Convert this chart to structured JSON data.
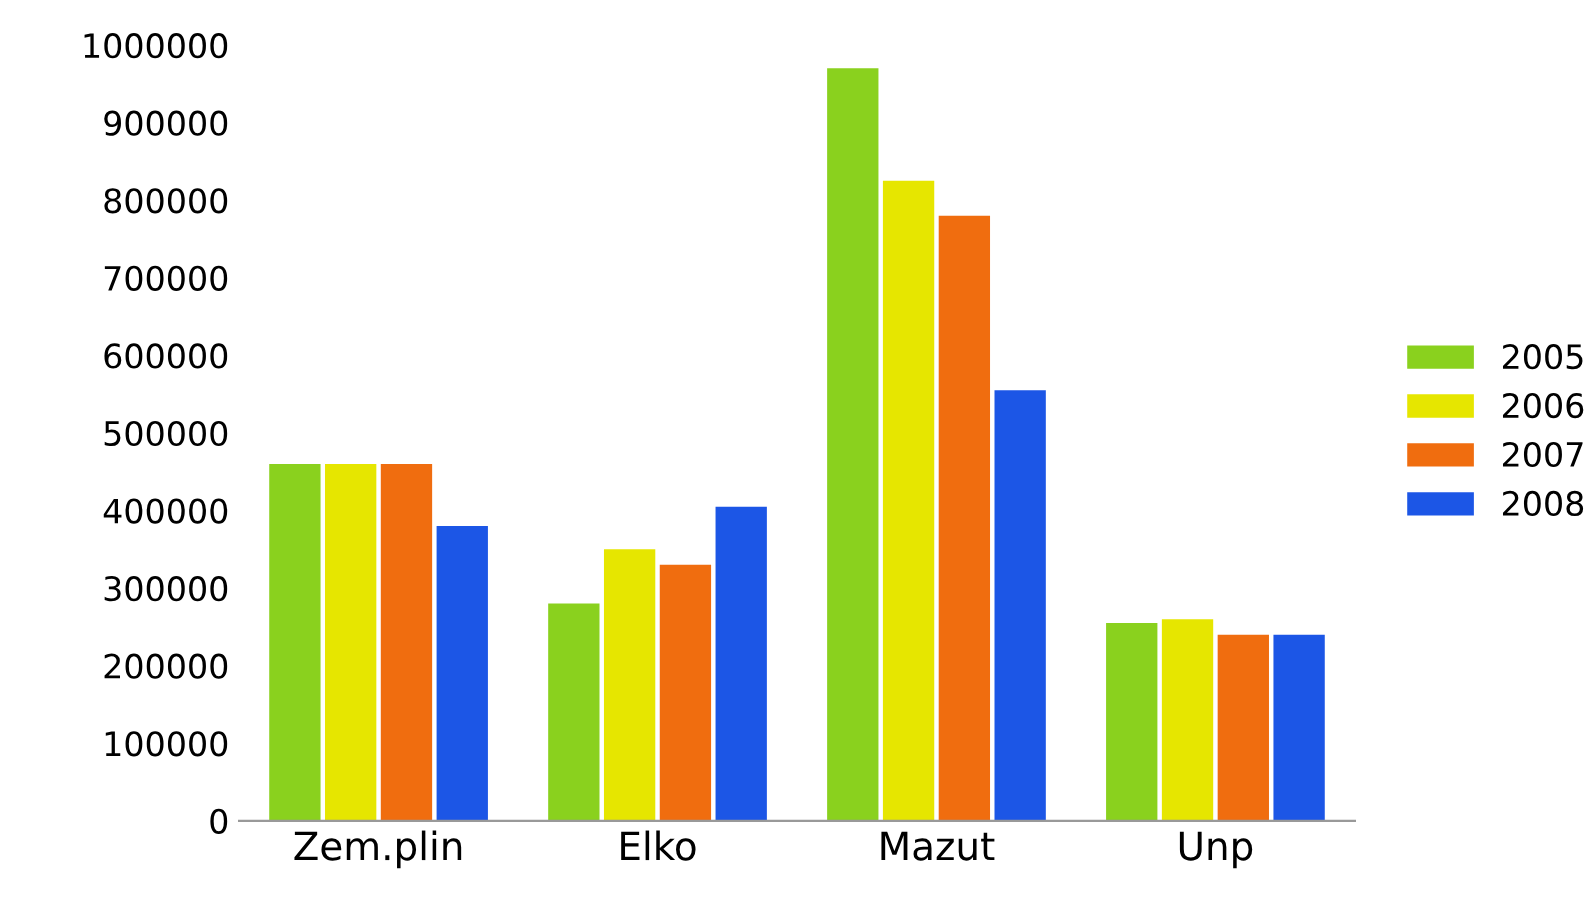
{
  "chart_data": {
    "type": "bar",
    "categories": [
      "Zem.plin",
      "Elko",
      "Mazut",
      "Unp"
    ],
    "series": [
      {
        "name": "2005",
        "color": "#8ad11e",
        "values": [
          460000,
          280000,
          970000,
          255000
        ]
      },
      {
        "name": "2006",
        "color": "#e6e600",
        "values": [
          460000,
          350000,
          825000,
          260000
        ]
      },
      {
        "name": "2007",
        "color": "#f06d0f",
        "values": [
          460000,
          330000,
          780000,
          240000
        ]
      },
      {
        "name": "2008",
        "color": "#1c56e6",
        "values": [
          380000,
          405000,
          555000,
          240000
        ]
      }
    ],
    "ylim": [
      0,
      1000000
    ],
    "yticks": [
      0,
      100000,
      200000,
      300000,
      400000,
      500000,
      600000,
      700000,
      800000,
      900000,
      1000000
    ],
    "grid": false,
    "legend": "right"
  }
}
